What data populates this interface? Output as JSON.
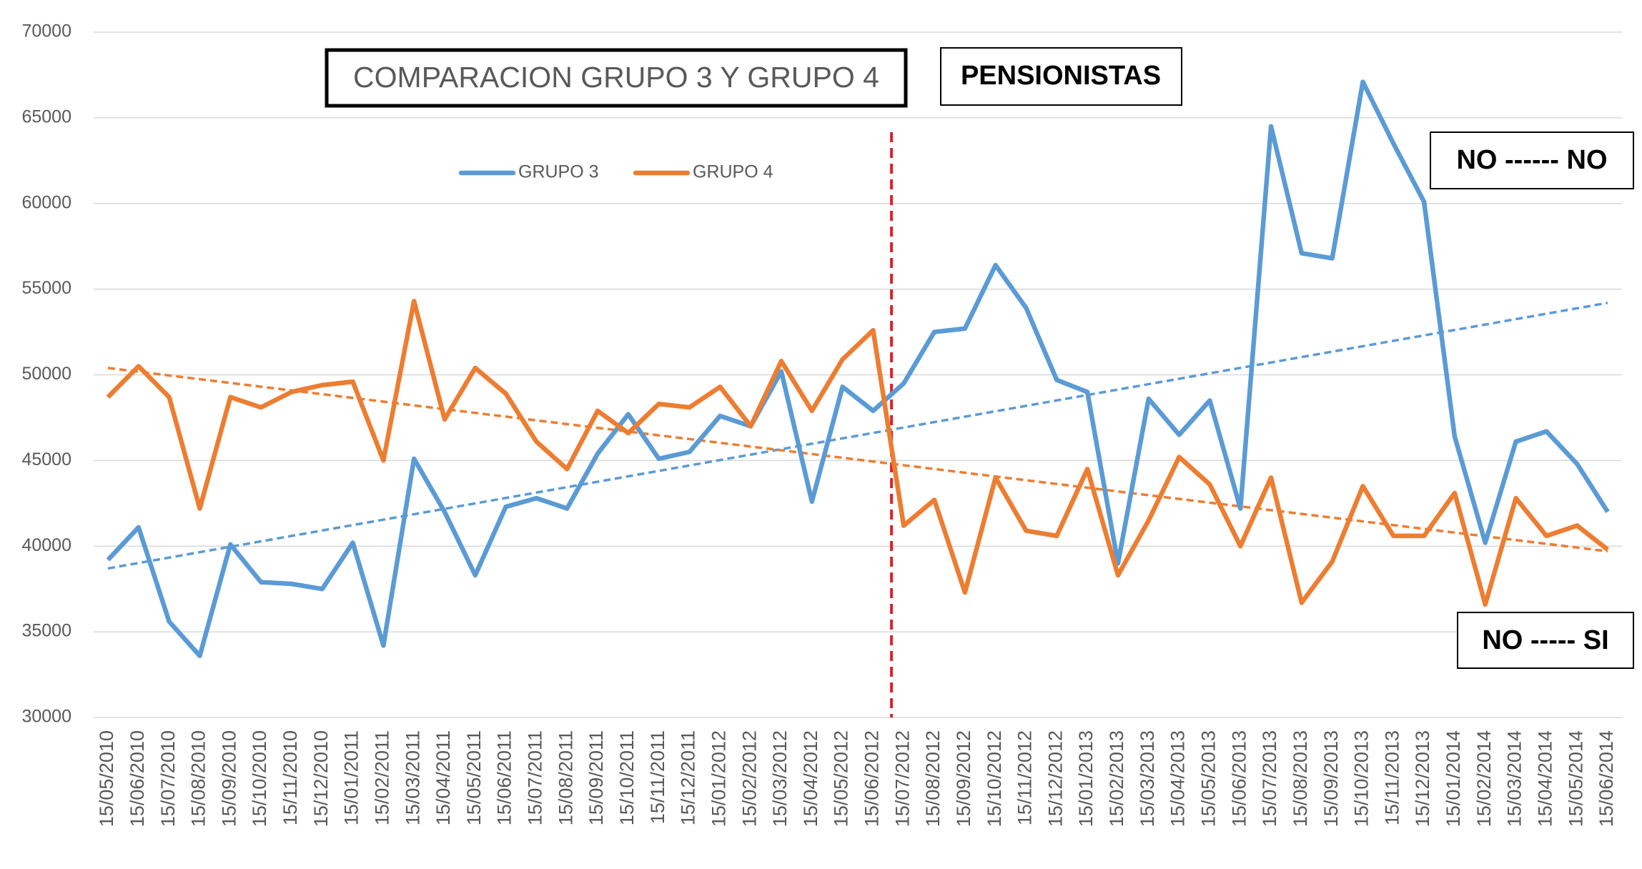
{
  "chart_data": {
    "type": "line",
    "title": "COMPARACION GRUPO 3 Y GRUPO 4",
    "annotations": [
      "PENSIONISTAS",
      "NO ------ NO",
      "NO ----- SI"
    ],
    "categories": [
      "15/05/2010",
      "15/06/2010",
      "15/07/2010",
      "15/08/2010",
      "15/09/2010",
      "15/10/2010",
      "15/11/2010",
      "15/12/2010",
      "15/01/2011",
      "15/02/2011",
      "15/03/2011",
      "15/04/2011",
      "15/05/2011",
      "15/06/2011",
      "15/07/2011",
      "15/08/2011",
      "15/09/2011",
      "15/10/2011",
      "15/11/2011",
      "15/12/2011",
      "15/01/2012",
      "15/02/2012",
      "15/03/2012",
      "15/04/2012",
      "15/05/2012",
      "15/06/2012",
      "15/07/2012",
      "15/08/2012",
      "15/09/2012",
      "15/10/2012",
      "15/11/2012",
      "15/12/2012",
      "15/01/2013",
      "15/02/2013",
      "15/03/2013",
      "15/04/2013",
      "15/05/2013",
      "15/06/2013",
      "15/07/2013",
      "15/08/2013",
      "15/09/2013",
      "15/10/2013",
      "15/11/2013",
      "15/12/2013",
      "15/01/2014",
      "15/02/2014",
      "15/03/2014",
      "15/04/2014",
      "15/05/2014",
      "15/06/2014"
    ],
    "series": [
      {
        "name": "GRUPO 3",
        "color": "#5b9bd5",
        "trend": [
          38700,
          54200
        ],
        "values": [
          39200,
          41100,
          35600,
          33600,
          40100,
          37900,
          37800,
          37500,
          40200,
          34200,
          45100,
          42000,
          38300,
          42300,
          42800,
          42200,
          45400,
          47700,
          45100,
          45500,
          47600,
          47000,
          50200,
          42600,
          49300,
          47900,
          49500,
          52500,
          52700,
          56400,
          53900,
          49700,
          49000,
          39000,
          48600,
          46500,
          48500,
          42200,
          64500,
          57100,
          56800,
          67100,
          63500,
          60100,
          46400,
          40200,
          46100,
          46700,
          44800,
          42000
        ]
      },
      {
        "name": "GRUPO 4",
        "color": "#ed7d31",
        "trend": [
          50400,
          39700
        ],
        "values": [
          48700,
          50500,
          48700,
          42200,
          48700,
          48100,
          49000,
          49400,
          49600,
          45000,
          54300,
          47400,
          50400,
          48900,
          46100,
          44500,
          47900,
          46600,
          48300,
          48100,
          49300,
          47000,
          50800,
          47900,
          50900,
          52600,
          41200,
          42700,
          37300,
          44000,
          40900,
          40600,
          44500,
          38300,
          41500,
          45200,
          43600,
          40000,
          44000,
          36700,
          39100,
          43500,
          40600,
          40600,
          43100,
          36600,
          42800,
          40600,
          41200,
          39800
        ]
      }
    ],
    "ylim": [
      30000,
      70000
    ],
    "yticks": [
      30000,
      35000,
      40000,
      45000,
      50000,
      55000,
      60000,
      65000,
      70000
    ],
    "grid": true
  }
}
